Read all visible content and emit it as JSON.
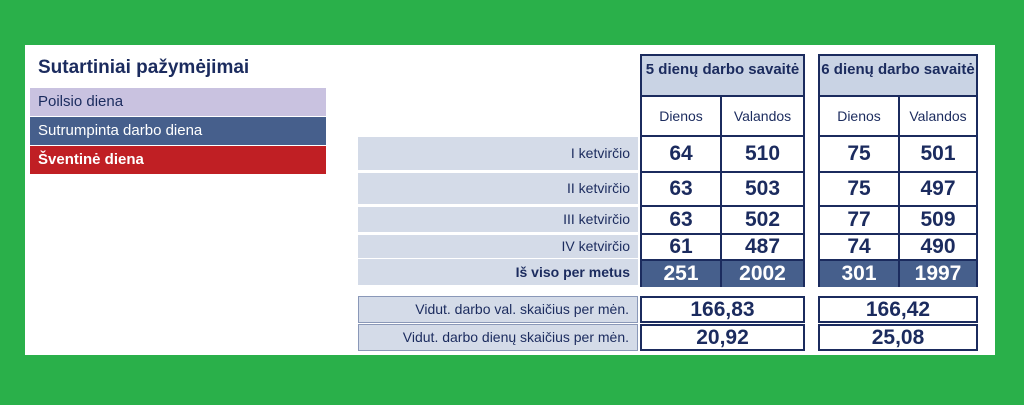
{
  "legend": {
    "title": "Sutartiniai pažymėjimai",
    "rest_day": "Poilsio diena",
    "short_day": "Sutrumpinta darbo diena",
    "holiday": "Šventinė diena"
  },
  "colors": {
    "background": "#2ab04a",
    "navy": "#1b2b5e",
    "rest": "#c9c2e0",
    "short": "#465f8c",
    "holiday": "#c01f24"
  },
  "week5": {
    "title": "5 dienų darbo savaitė",
    "col_days": "Dienos",
    "col_hours": "Valandos",
    "rows": [
      {
        "days": "64",
        "hours": "510"
      },
      {
        "days": "63",
        "hours": "503"
      },
      {
        "days": "63",
        "hours": "502"
      },
      {
        "days": "61",
        "hours": "487"
      }
    ],
    "total_days": "251",
    "total_hours": "2002",
    "avg_hours": "166,83",
    "avg_days": "20,92"
  },
  "week6": {
    "title": "6 dienų darbo savaitė",
    "col_days": "Dienos",
    "col_hours": "Valandos",
    "rows": [
      {
        "days": "75",
        "hours": "501"
      },
      {
        "days": "75",
        "hours": "497"
      },
      {
        "days": "77",
        "hours": "509"
      },
      {
        "days": "74",
        "hours": "490"
      }
    ],
    "total_days": "301",
    "total_hours": "1997",
    "avg_hours": "166,42",
    "avg_days": "25,08"
  },
  "row_labels": [
    "I ketvirčio",
    "II ketvirčio",
    "III ketvirčio",
    "IV ketvirčio"
  ],
  "total_label": "Iš viso per metus",
  "avg_hours_label": "Vidut. darbo val. skaičius per mėn.",
  "avg_days_label": "Vidut. darbo dienų skaičius per mėn."
}
